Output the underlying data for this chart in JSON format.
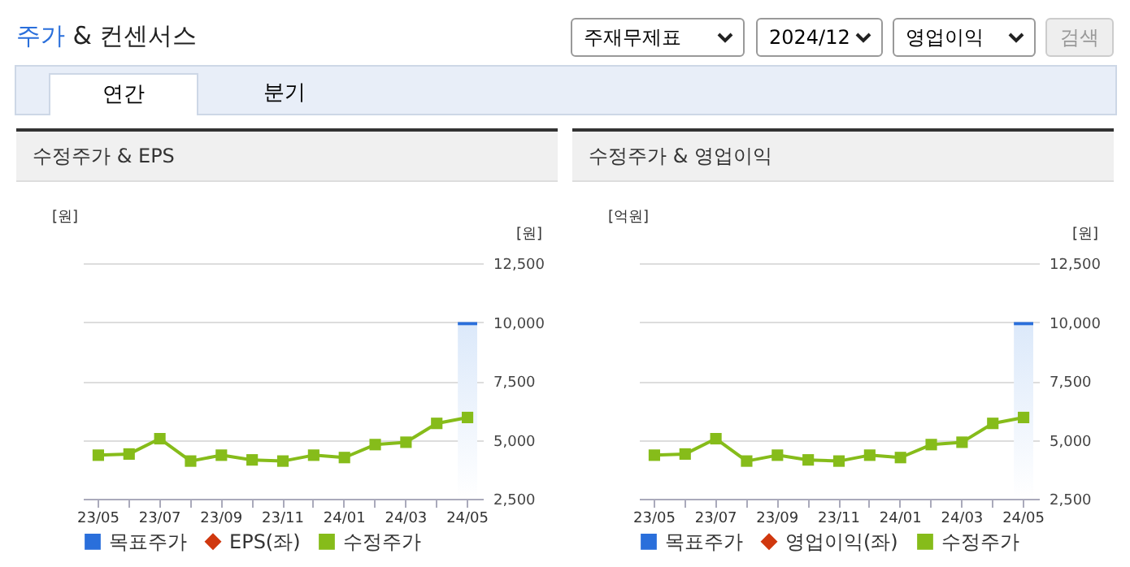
{
  "chart_data": [
    {
      "type": "other",
      "title": "주가 & 컨센서스",
      "annotations": [
        "주재무제표",
        "2024/12",
        "영업이익",
        "검색",
        "연간",
        "분기"
      ]
    },
    {
      "type": "line",
      "title": "수정주가 & EPS",
      "ylabel": "[원]",
      "y2label": "[원]",
      "categories": [
        "23/05",
        null,
        "23/07",
        null,
        "23/09",
        null,
        "23/11",
        null,
        "24/01",
        null,
        "24/03",
        null,
        "24/05"
      ],
      "y2lim": [
        2500,
        12500
      ],
      "y2ticks": [
        {
          "value": 2500,
          "label": "2,500"
        },
        {
          "value": 5000,
          "label": "5,000"
        },
        {
          "value": 7500,
          "label": "7,500"
        },
        {
          "value": 10000,
          "label": "10,000"
        },
        {
          "value": 12500,
          "label": "12,500"
        }
      ],
      "grid": true,
      "legend": "bottom",
      "marker": "square",
      "line_style": "solid",
      "series": [
        {
          "name": "목표주가",
          "type": "bar",
          "axis": "y2",
          "color": "#2a6fdb",
          "values": [
            null,
            null,
            null,
            null,
            null,
            null,
            null,
            null,
            null,
            null,
            null,
            null,
            10000
          ]
        },
        {
          "name": "EPS(좌)",
          "type": "line",
          "marker": "diamond",
          "color": "#d0380f",
          "values": [
            null,
            null,
            null,
            null,
            null,
            null,
            null,
            null,
            null,
            null,
            null,
            null,
            null
          ]
        },
        {
          "name": "수정주가",
          "type": "line",
          "axis": "y2",
          "color": "#86bc1a",
          "values": [
            4350,
            4400,
            5050,
            4100,
            4350,
            4150,
            4100,
            4350,
            4250,
            4800,
            4900,
            5700,
            5950
          ]
        }
      ]
    },
    {
      "type": "line",
      "title": "수정주가 & 영업이익",
      "ylabel": "[억원]",
      "y2label": "[원]",
      "categories": [
        "23/05",
        null,
        "23/07",
        null,
        "23/09",
        null,
        "23/11",
        null,
        "24/01",
        null,
        "24/03",
        null,
        "24/05"
      ],
      "y2lim": [
        2500,
        12500
      ],
      "y2ticks": [
        {
          "value": 2500,
          "label": "2,500"
        },
        {
          "value": 5000,
          "label": "5,000"
        },
        {
          "value": 7500,
          "label": "7,500"
        },
        {
          "value": 10000,
          "label": "10,000"
        },
        {
          "value": 12500,
          "label": "12,500"
        }
      ],
      "grid": true,
      "legend": "bottom",
      "marker": "square",
      "line_style": "solid",
      "series": [
        {
          "name": "목표주가",
          "type": "bar",
          "axis": "y2",
          "color": "#2a6fdb",
          "values": [
            null,
            null,
            null,
            null,
            null,
            null,
            null,
            null,
            null,
            null,
            null,
            null,
            10000
          ]
        },
        {
          "name": "영업이익(좌)",
          "type": "line",
          "marker": "diamond",
          "color": "#d0380f",
          "values": [
            null,
            null,
            null,
            null,
            null,
            null,
            null,
            null,
            null,
            null,
            null,
            null,
            null
          ]
        },
        {
          "name": "수정주가",
          "type": "line",
          "axis": "y2",
          "color": "#86bc1a",
          "values": [
            4350,
            4400,
            5050,
            4100,
            4350,
            4150,
            4100,
            4350,
            4250,
            4800,
            4900,
            5700,
            5950
          ]
        }
      ]
    }
  ]
}
